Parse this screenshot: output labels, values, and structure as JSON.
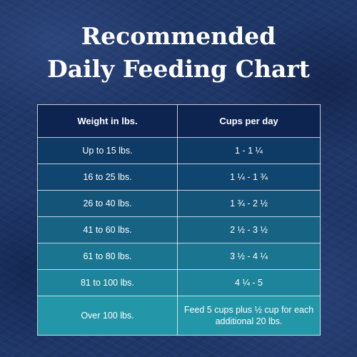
{
  "title": {
    "line1": "Recommended",
    "line2": "Daily Feeding Chart"
  },
  "table": {
    "headers": [
      "Weight in lbs.",
      "Cups per day"
    ],
    "rows": [
      {
        "weight": "Up to 15 lbs.",
        "cups": "1 - 1 ¼"
      },
      {
        "weight": "16 to 25 lbs.",
        "cups": "1 ¼  - 1 ¾"
      },
      {
        "weight": "26 to 40 lbs.",
        "cups": "1 ¾  - 2 ½"
      },
      {
        "weight": "41 to 60 lbs.",
        "cups": "2 ½  - 3 ½"
      },
      {
        "weight": "61 to 80 lbs.",
        "cups": "3 ½  - 4 ¼"
      },
      {
        "weight": "81 to 100 lbs.",
        "cups": "4 ¼  - 5"
      },
      {
        "weight": "Over 100 lbs.",
        "cups": "Feed 5 cups plus ½ cup for each additional 20 lbs."
      }
    ]
  }
}
